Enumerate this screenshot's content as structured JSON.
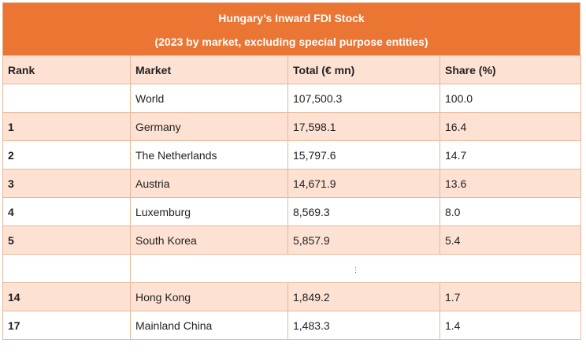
{
  "title": {
    "line1": "Hungary’s Inward FDI Stock",
    "line2": "(2023 by market, excluding special purpose entities)"
  },
  "columns": [
    "Rank",
    "Market",
    "Total (€ mn)",
    "Share (%)"
  ],
  "rows": [
    {
      "rank": "",
      "market": "World",
      "total": "107,500.3",
      "share": "100.0"
    },
    {
      "rank": "1",
      "market": "Germany",
      "total": "17,598.1",
      "share": "16.4"
    },
    {
      "rank": "2",
      "market": "The Netherlands",
      "total": "15,797.6",
      "share": "14.7"
    },
    {
      "rank": "3",
      "market": "Austria",
      "total": "14,671.9",
      "share": "13.6"
    },
    {
      "rank": "4",
      "market": "Luxemburg",
      "total": "8,569.3",
      "share": "8.0"
    },
    {
      "rank": "5",
      "market": "South Korea",
      "total": "5,857.9",
      "share": "5.4"
    }
  ],
  "ellipsis": "⋮",
  "rows_after": [
    {
      "rank": "14",
      "market": "Hong Kong",
      "total": "1,849.2",
      "share": "1.7"
    },
    {
      "rank": "17",
      "market": "Mainland China",
      "total": "1,483.3",
      "share": "1.4"
    }
  ],
  "colors": {
    "header_bg": "#eb7533",
    "row_peach": "#fde1d3",
    "row_white": "#ffffff",
    "border": "#e8b89a"
  }
}
